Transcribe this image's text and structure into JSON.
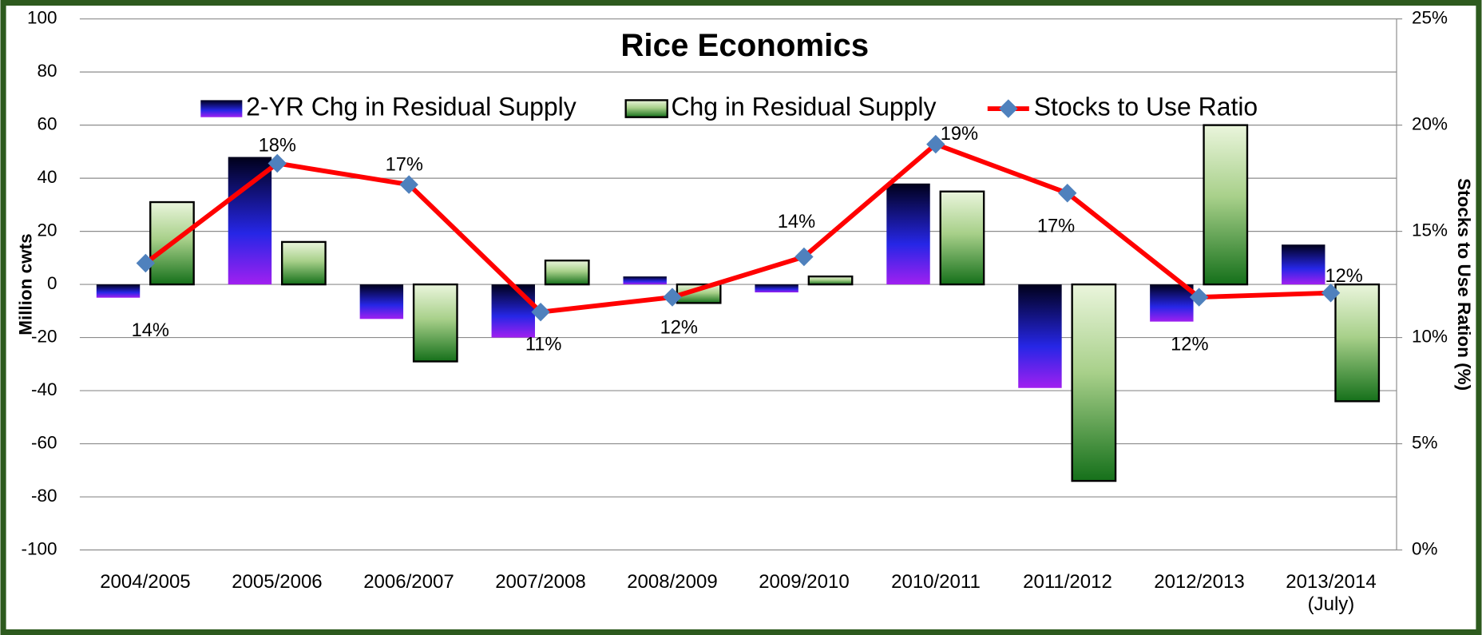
{
  "chart_data": {
    "type": "bar",
    "title": "Rice Economics",
    "y_label": "Million cwts",
    "y2_label": "Stocks to Use Ration (%)",
    "categories": [
      "2004/2005",
      "2005/2006",
      "2006/2007",
      "2007/2008",
      "2008/2009",
      "2009/2010",
      "2010/2011",
      "2011/2012",
      "2012/2013",
      "2013/2014\n(July)"
    ],
    "series": [
      {
        "name": "2-YR Chg in Residual Supply",
        "type": "bar",
        "color": "#2020d0",
        "values": [
          -5,
          48,
          -13,
          -20,
          3,
          -3,
          38,
          -39,
          -14,
          15
        ]
      },
      {
        "name": "Chg in Residual Supply",
        "type": "bar",
        "color": "#2e8b2e",
        "values": [
          31,
          16,
          -29,
          9,
          -7,
          3,
          35,
          -74,
          60,
          -44
        ]
      },
      {
        "name": "Stocks to Use Ratio",
        "type": "line",
        "axis": "y2",
        "color": "#ff0000",
        "marker_color": "#4f81bd",
        "values": [
          13.5,
          18.2,
          17.2,
          11.2,
          11.9,
          13.8,
          19.1,
          16.8,
          11.9,
          12.1
        ],
        "value_labels": [
          "14%",
          "18%",
          "17%",
          "11%",
          "12%",
          "14%",
          "19%",
          "17%",
          "12%",
          "12%"
        ]
      }
    ],
    "ylim": [
      -100,
      100
    ],
    "yticks": [
      -100,
      -80,
      -60,
      -40,
      -20,
      0,
      20,
      40,
      60,
      80,
      100
    ],
    "y2lim": [
      0,
      25
    ],
    "y2ticks": [
      {
        "value": 0,
        "label": "0%"
      },
      {
        "value": 5,
        "label": "5%"
      },
      {
        "value": 10,
        "label": "10%"
      },
      {
        "value": 15,
        "label": "15%"
      },
      {
        "value": 20,
        "label": "20%"
      },
      {
        "value": 25,
        "label": "25%"
      }
    ],
    "grid": true,
    "legend": "top"
  }
}
